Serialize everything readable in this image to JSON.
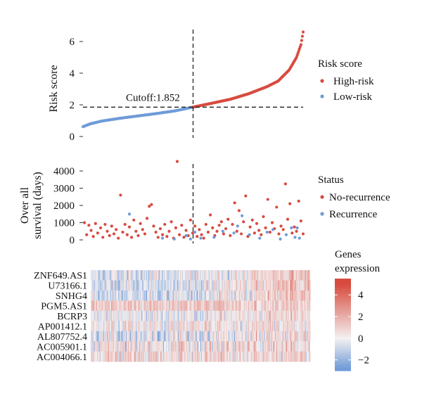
{
  "chart_data": [
    {
      "type": "scatter",
      "name": "risk_score_curve",
      "ylabel": "Risk score",
      "ylim": [
        0,
        6.5
      ],
      "yticks": [
        0,
        2,
        4,
        6
      ],
      "n_patients": 300,
      "cutoff": {
        "value": 1.852,
        "label": "Cutoff:1.852",
        "index": 150
      },
      "legend": {
        "title": "Risk score",
        "entries": [
          {
            "label": "High-risk",
            "color": "#d84b3f"
          },
          {
            "label": "Low-risk",
            "color": "#6f9bd8"
          }
        ]
      },
      "series": [
        {
          "name": "Low-risk",
          "color": "#6f9bd8",
          "from": 0,
          "to": 149,
          "y_start": 0.65,
          "y_end": 1.85
        },
        {
          "name": "High-risk",
          "color": "#d84b3f",
          "from": 150,
          "to": 299,
          "y_start": 1.86,
          "y_end": 6.6
        }
      ],
      "curve_points": [
        {
          "index": 0,
          "value": 0.62
        },
        {
          "index": 10,
          "value": 0.8
        },
        {
          "index": 25,
          "value": 0.97
        },
        {
          "index": 50,
          "value": 1.15
        },
        {
          "index": 75,
          "value": 1.3
        },
        {
          "index": 100,
          "value": 1.45
        },
        {
          "index": 125,
          "value": 1.62
        },
        {
          "index": 149,
          "value": 1.85
        },
        {
          "index": 150,
          "value": 1.86
        },
        {
          "index": 175,
          "value": 2.1
        },
        {
          "index": 200,
          "value": 2.35
        },
        {
          "index": 225,
          "value": 2.7
        },
        {
          "index": 250,
          "value": 3.15
        },
        {
          "index": 265,
          "value": 3.5
        },
        {
          "index": 280,
          "value": 4.2
        },
        {
          "index": 290,
          "value": 5.0
        },
        {
          "index": 296,
          "value": 5.8
        },
        {
          "index": 299,
          "value": 6.6
        }
      ]
    },
    {
      "type": "scatter",
      "name": "survival_status",
      "ylabel": "Over all\nsurvival (days)",
      "ylim": [
        0,
        4600
      ],
      "yticks": [
        0,
        1000,
        2000,
        3000,
        4000
      ],
      "legend": {
        "title": "Status",
        "entries": [
          {
            "label": "No-recurrence",
            "color": "#d84b3f"
          },
          {
            "label": "Recurrence",
            "color": "#6f9bd8"
          }
        ]
      },
      "series": [
        {
          "name": "No-recurrence",
          "color": "#d84b3f",
          "points": [
            [
              2,
              1000
            ],
            [
              5,
              300
            ],
            [
              8,
              850
            ],
            [
              11,
              550
            ],
            [
              14,
              200
            ],
            [
              17,
              950
            ],
            [
              20,
              400
            ],
            [
              24,
              700
            ],
            [
              27,
              150
            ],
            [
              30,
              900
            ],
            [
              33,
              500
            ],
            [
              36,
              250
            ],
            [
              39,
              800
            ],
            [
              42,
              350
            ],
            [
              45,
              600
            ],
            [
              48,
              100
            ],
            [
              51,
              2600
            ],
            [
              54,
              450
            ],
            [
              57,
              900
            ],
            [
              60,
              300
            ],
            [
              63,
              750
            ],
            [
              66,
              150
            ],
            [
              69,
              1150
            ],
            [
              72,
              500
            ],
            [
              75,
              250
            ],
            [
              78,
              950
            ],
            [
              81,
              600
            ],
            [
              84,
              350
            ],
            [
              87,
              1250
            ],
            [
              90,
              1950
            ],
            [
              93,
              2050
            ],
            [
              96,
              800
            ],
            [
              99,
              450
            ],
            [
              102,
              150
            ],
            [
              105,
              650
            ],
            [
              108,
              300
            ],
            [
              111,
              900
            ],
            [
              114,
              200
            ],
            [
              117,
              500
            ],
            [
              120,
              1050
            ],
            [
              123,
              100
            ],
            [
              126,
              700
            ],
            [
              128,
              4550
            ],
            [
              131,
              300
            ],
            [
              134,
              850
            ],
            [
              137,
              150
            ],
            [
              140,
              550
            ],
            [
              143,
              250
            ],
            [
              146,
              1150
            ],
            [
              149,
              400
            ],
            [
              152,
              800
            ],
            [
              155,
              200
            ],
            [
              158,
              600
            ],
            [
              161,
              300
            ],
            [
              164,
              100
            ],
            [
              167,
              900
            ],
            [
              170,
              450
            ],
            [
              173,
              1450
            ],
            [
              176,
              700
            ],
            [
              179,
              250
            ],
            [
              182,
              500
            ],
            [
              185,
              850
            ],
            [
              188,
              1050
            ],
            [
              191,
              350
            ],
            [
              194,
              650
            ],
            [
              197,
              1200
            ],
            [
              200,
              250
            ],
            [
              203,
              900
            ],
            [
              206,
              2150
            ],
            [
              209,
              500
            ],
            [
              212,
              1700
            ],
            [
              215,
              350
            ],
            [
              218,
              1050
            ],
            [
              221,
              2550
            ],
            [
              224,
              200
            ],
            [
              227,
              750
            ],
            [
              230,
              1150
            ],
            [
              233,
              400
            ],
            [
              236,
              950
            ],
            [
              239,
              550
            ],
            [
              242,
              300
            ],
            [
              245,
              1350
            ],
            [
              248,
              700
            ],
            [
              251,
              2350
            ],
            [
              254,
              450
            ],
            [
              257,
              1000
            ],
            [
              260,
              650
            ],
            [
              263,
              1900
            ],
            [
              266,
              350
            ],
            [
              269,
              800
            ],
            [
              272,
              600
            ],
            [
              275,
              3250
            ],
            [
              278,
              1200
            ],
            [
              281,
              2100
            ],
            [
              284,
              400
            ],
            [
              287,
              750
            ],
            [
              290,
              500
            ],
            [
              293,
              2250
            ],
            [
              296,
              1100
            ],
            [
              299,
              350
            ]
          ]
        },
        {
          "name": "Recurrence",
          "color": "#6f9bd8",
          "points": [
            [
              63,
              1500
            ],
            [
              108,
              100
            ],
            [
              124,
              50
            ],
            [
              140,
              250
            ],
            [
              146,
              50
            ],
            [
              152,
              450
            ],
            [
              160,
              100
            ],
            [
              178,
              150
            ],
            [
              190,
              500
            ],
            [
              205,
              400
            ],
            [
              210,
              800
            ],
            [
              216,
              1400
            ],
            [
              226,
              300
            ],
            [
              240,
              100
            ],
            [
              250,
              450
            ],
            [
              258,
              600
            ],
            [
              268,
              50
            ],
            [
              276,
              300
            ],
            [
              283,
              700
            ],
            [
              288,
              150
            ],
            [
              291,
              700
            ],
            [
              294,
              100
            ]
          ]
        }
      ]
    },
    {
      "type": "heatmap",
      "name": "gene_expression",
      "genes": [
        "ZNF649.AS1",
        "U73166.1",
        "SNHG4",
        "PGM5.AS1",
        "BCRP3",
        "AP001412.1",
        "AL807752.4",
        "AC005901.1",
        "AC004066.1"
      ],
      "n_columns": 300,
      "colorbar": {
        "title": [
          "Genes",
          "expression"
        ],
        "ticks": [
          4,
          2,
          0,
          -2
        ],
        "range": [
          -3,
          5.5
        ],
        "low": "#6f9bd8",
        "mid": "#f4f1f1",
        "high": "#d84b3f"
      },
      "gene_profiles": [
        {
          "gene": "ZNF649.AS1",
          "low_mean": -0.4,
          "high_mean": 1.6,
          "sd": 0.7
        },
        {
          "gene": "U73166.1",
          "low_mean": -0.6,
          "high_mean": 1.8,
          "sd": 0.8
        },
        {
          "gene": "SNHG4",
          "low_mean": -0.5,
          "high_mean": 1.4,
          "sd": 0.8
        },
        {
          "gene": "PGM5.AS1",
          "low_mean": 1.2,
          "high_mean": 0.9,
          "sd": 0.6
        },
        {
          "gene": "BCRP3",
          "low_mean": -0.2,
          "high_mean": 0.8,
          "sd": 0.7
        },
        {
          "gene": "AP001412.1",
          "low_mean": 0.3,
          "high_mean": 0.6,
          "sd": 0.7
        },
        {
          "gene": "AL807752.4",
          "low_mean": -0.3,
          "high_mean": 0.7,
          "sd": 0.9
        },
        {
          "gene": "AC005901.1",
          "low_mean": 0.4,
          "high_mean": 0.5,
          "sd": 1.0
        },
        {
          "gene": "AC004066.1",
          "low_mean": 0.8,
          "high_mean": 0.6,
          "sd": 0.7
        }
      ]
    }
  ]
}
